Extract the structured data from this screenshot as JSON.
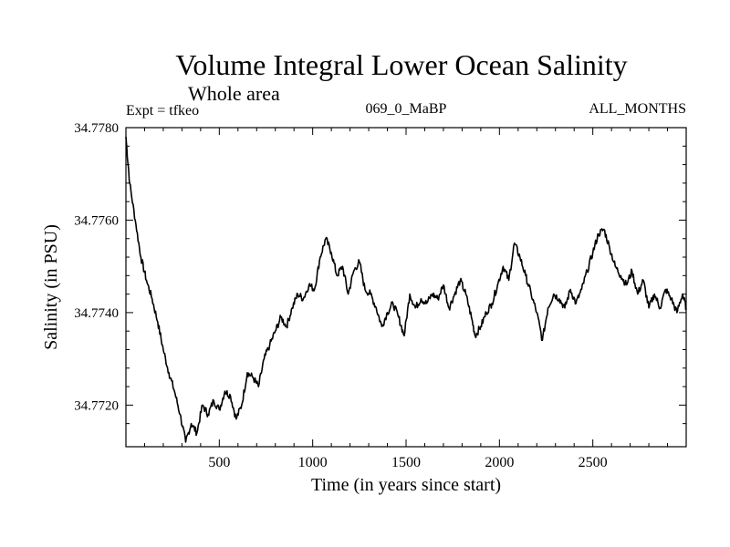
{
  "chart_data": {
    "type": "line",
    "title": "Volume Integral Lower Ocean Salinity",
    "subtitle": "Whole area",
    "annotations": {
      "left": "Expt = tfkeo",
      "center": "069_0_MaBP",
      "right": "ALL_MONTHS"
    },
    "xlabel": "Time (in years since start)",
    "ylabel": "Salinity (in PSU)",
    "xlim": [
      0,
      3000
    ],
    "ylim": [
      34.7711,
      34.778
    ],
    "x_ticks": [
      500,
      1000,
      1500,
      2000,
      2500
    ],
    "y_ticks": [
      34.772,
      34.774,
      34.776,
      34.778
    ],
    "y_tick_labels": [
      "34.7720",
      "34.7740",
      "34.7760",
      "34.7780"
    ],
    "grid": false,
    "series": [
      {
        "x": [
          0,
          20,
          50,
          80,
          110,
          140,
          170,
          200,
          230,
          260,
          290,
          320,
          350,
          380,
          410,
          440,
          470,
          500,
          530,
          560,
          590,
          620,
          650,
          680,
          710,
          740,
          770,
          800,
          830,
          860,
          890,
          920,
          950,
          980,
          1010,
          1040,
          1070,
          1100,
          1130,
          1160,
          1190,
          1220,
          1250,
          1280,
          1310,
          1340,
          1370,
          1400,
          1430,
          1460,
          1490,
          1520,
          1550,
          1580,
          1610,
          1640,
          1670,
          1700,
          1730,
          1760,
          1790,
          1820,
          1850,
          1870,
          1900,
          1930,
          1960,
          1990,
          2020,
          2050,
          2080,
          2110,
          2140,
          2170,
          2200,
          2230,
          2260,
          2290,
          2320,
          2350,
          2380,
          2410,
          2440,
          2470,
          2500,
          2530,
          2560,
          2590,
          2620,
          2650,
          2680,
          2710,
          2740,
          2770,
          2800,
          2830,
          2860,
          2890,
          2920,
          2950,
          2980,
          3000
        ],
        "y": [
          34.7778,
          34.7768,
          34.776,
          34.7752,
          34.7747,
          34.7743,
          34.7738,
          34.7732,
          34.7727,
          34.7723,
          34.7718,
          34.7712,
          34.7716,
          34.7714,
          34.772,
          34.7718,
          34.7721,
          34.7719,
          34.7723,
          34.7722,
          34.7717,
          34.772,
          34.7727,
          34.7726,
          34.7724,
          34.773,
          34.7733,
          34.7736,
          34.7739,
          34.7737,
          34.7741,
          34.7744,
          34.7743,
          34.7746,
          34.7745,
          34.7752,
          34.7756,
          34.7753,
          34.7748,
          34.775,
          34.7744,
          34.7749,
          34.7751,
          34.7745,
          34.7744,
          34.7741,
          34.7737,
          34.774,
          34.7742,
          34.7739,
          34.7735,
          34.7744,
          34.7741,
          34.7743,
          34.7742,
          34.7744,
          34.7743,
          34.7746,
          34.7741,
          34.7744,
          34.7747,
          34.7744,
          34.7739,
          34.7735,
          34.7737,
          34.774,
          34.7742,
          34.7746,
          34.775,
          34.7747,
          34.7755,
          34.7752,
          34.7748,
          34.7744,
          34.774,
          34.7734,
          34.7741,
          34.7744,
          34.7743,
          34.7741,
          34.7745,
          34.7742,
          34.7745,
          34.7749,
          34.7753,
          34.7757,
          34.7758,
          34.7754,
          34.775,
          34.7748,
          34.7746,
          34.7749,
          34.7744,
          34.7747,
          34.7741,
          34.7744,
          34.7741,
          34.7745,
          34.7743,
          34.774,
          34.7744,
          34.7741
        ]
      }
    ]
  }
}
